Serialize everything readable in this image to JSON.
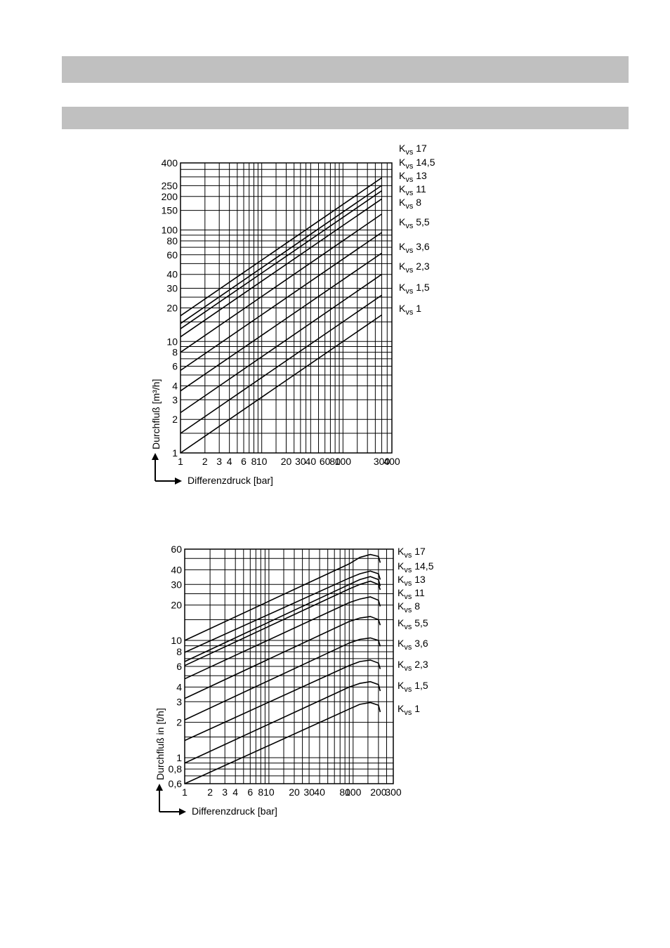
{
  "header": {
    "bar_color": "#c0c0c0"
  },
  "chart_data": [
    {
      "type": "line",
      "xscale": "log",
      "yscale": "log",
      "xlabel": "Differenzdruck [bar]",
      "ylabel": "Durchfluß [m³/h]",
      "xlim": [
        1,
        400
      ],
      "ylim": [
        1,
        400
      ],
      "xticks": [
        "1",
        "2",
        "3",
        "4",
        "6",
        "8",
        "10",
        "20",
        "30",
        "40",
        "60",
        "80",
        "100",
        "300",
        "400"
      ],
      "yticks": [
        "1",
        "2",
        "3",
        "4",
        "6",
        "8",
        "10",
        "20",
        "30",
        "40",
        "60",
        "80",
        "100",
        "150",
        "200",
        "250",
        "400"
      ],
      "grid": true,
      "series": [
        {
          "name": "Kvs 17",
          "x": [
            1,
            300
          ],
          "y": [
            17,
            294
          ]
        },
        {
          "name": "Kvs 14,5",
          "x": [
            1,
            300
          ],
          "y": [
            14.5,
            251
          ]
        },
        {
          "name": "Kvs 13",
          "x": [
            1,
            300
          ],
          "y": [
            13,
            225
          ]
        },
        {
          "name": "Kvs 11",
          "x": [
            1,
            300
          ],
          "y": [
            11,
            190
          ]
        },
        {
          "name": "Kvs 8",
          "x": [
            1,
            300
          ],
          "y": [
            8,
            139
          ]
        },
        {
          "name": "Kvs 5,5",
          "x": [
            1,
            300
          ],
          "y": [
            5.5,
            95
          ]
        },
        {
          "name": "Kvs 3,6",
          "x": [
            1,
            300
          ],
          "y": [
            3.6,
            62
          ]
        },
        {
          "name": "Kvs 2,3",
          "x": [
            1,
            300
          ],
          "y": [
            2.3,
            40
          ]
        },
        {
          "name": "Kvs 1,5",
          "x": [
            1,
            300
          ],
          "y": [
            1.5,
            26
          ]
        },
        {
          "name": "Kvs 1",
          "x": [
            1,
            300
          ],
          "y": [
            1,
            17.3
          ]
        }
      ]
    },
    {
      "type": "line",
      "xscale": "log",
      "yscale": "log",
      "xlabel": "Differenzdruck [bar]",
      "ylabel": "Durchfluß in [t/h]",
      "xlim": [
        1,
        300
      ],
      "ylim": [
        0.6,
        60
      ],
      "xticks": [
        "1",
        "2",
        "3",
        "4",
        "6",
        "8",
        "10",
        "20",
        "30",
        "40",
        "80",
        "100",
        "200",
        "300"
      ],
      "yticks": [
        "0,6",
        "0,8",
        "1",
        "2",
        "3",
        "4",
        "6",
        "8",
        "10",
        "20",
        "30",
        "40",
        "60"
      ],
      "grid": true,
      "series": [
        {
          "name": "Kvs 17",
          "x": [
            1,
            90,
            120,
            160,
            200,
            210
          ],
          "y": [
            10.0,
            45,
            51,
            54,
            52,
            46
          ]
        },
        {
          "name": "Kvs 14,5",
          "x": [
            1,
            90,
            120,
            160,
            200,
            210
          ],
          "y": [
            7.9,
            34,
            37,
            39,
            37,
            33
          ]
        },
        {
          "name": "Kvs 13",
          "x": [
            1,
            90,
            120,
            160,
            200,
            210
          ],
          "y": [
            6.6,
            30,
            33,
            35,
            33,
            29
          ]
        },
        {
          "name": "Kvs 11",
          "x": [
            1,
            90,
            120,
            160,
            200,
            210
          ],
          "y": [
            6.1,
            27.5,
            30,
            32,
            30,
            27
          ]
        },
        {
          "name": "Kvs 8",
          "x": [
            1,
            90,
            120,
            160,
            200,
            210
          ],
          "y": [
            4.7,
            21,
            22.5,
            23.5,
            22,
            19.5
          ]
        },
        {
          "name": "Kvs 5,5",
          "x": [
            1,
            90,
            120,
            160,
            200,
            210
          ],
          "y": [
            3.2,
            14.5,
            15.5,
            16,
            15,
            13.5
          ]
        },
        {
          "name": "Kvs 3,6",
          "x": [
            1,
            90,
            120,
            160,
            200,
            210
          ],
          "y": [
            2.1,
            9.5,
            10.2,
            10.5,
            10,
            8.9
          ]
        },
        {
          "name": "Kvs 2,3",
          "x": [
            1,
            90,
            120,
            160,
            200,
            210
          ],
          "y": [
            1.4,
            6.1,
            6.6,
            6.8,
            6.4,
            5.7
          ]
        },
        {
          "name": "Kvs 1,5",
          "x": [
            1,
            90,
            120,
            160,
            200,
            210
          ],
          "y": [
            0.9,
            4.0,
            4.3,
            4.45,
            4.2,
            3.7
          ]
        },
        {
          "name": "Kvs 1",
          "x": [
            1,
            90,
            120,
            160,
            200,
            210
          ],
          "y": [
            0.6,
            2.6,
            2.85,
            2.95,
            2.8,
            2.45
          ]
        }
      ]
    }
  ]
}
